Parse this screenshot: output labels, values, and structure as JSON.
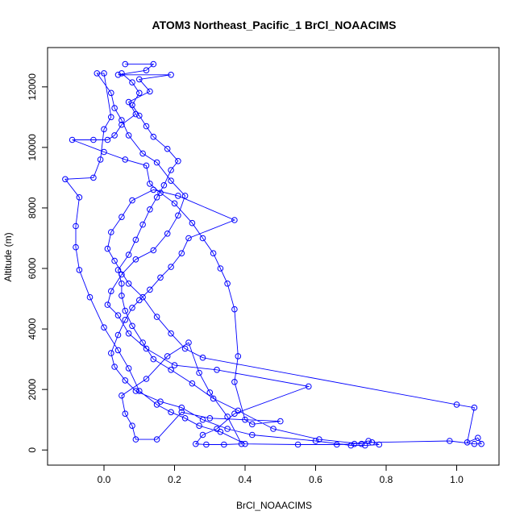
{
  "chart_data": {
    "type": "line",
    "title": "ATOM3 Northeast_Pacific_1 BrCl_NOAACIMS",
    "xlabel": "BrCl_NOAACIMS",
    "ylabel": "Altitude (m)",
    "xlim": [
      -0.16,
      1.12
    ],
    "ylim": [
      -500,
      13300
    ],
    "x_ticks": [
      0.0,
      0.2,
      0.4,
      0.6,
      0.8,
      1.0
    ],
    "x_tick_labels": [
      "0.0",
      "0.2",
      "0.4",
      "0.6",
      "0.8",
      "1.0"
    ],
    "y_ticks": [
      0,
      2000,
      4000,
      6000,
      8000,
      10000,
      12000
    ],
    "y_tick_labels": [
      "0",
      "2000",
      "4000",
      "6000",
      "8000",
      "10000",
      "12000"
    ],
    "grid": false,
    "series": [
      {
        "color": "#0000ff",
        "marker": "open-circle",
        "points": [
          [
            0.06,
            12750
          ],
          [
            0.14,
            12750
          ],
          [
            0.12,
            12550
          ],
          [
            0.04,
            12400
          ],
          [
            0.19,
            12400
          ],
          [
            0.1,
            12250
          ],
          [
            0.13,
            11850
          ],
          [
            0.07,
            11500
          ],
          [
            0.09,
            11100
          ],
          [
            0.05,
            10750
          ],
          [
            0.03,
            10400
          ],
          [
            0.01,
            10250
          ],
          [
            -0.03,
            10250
          ],
          [
            -0.09,
            10250
          ],
          [
            0.0,
            9850
          ],
          [
            0.06,
            9600
          ],
          [
            0.12,
            9400
          ],
          [
            0.13,
            8800
          ],
          [
            0.16,
            8500
          ],
          [
            0.2,
            8150
          ],
          [
            0.25,
            7500
          ],
          [
            0.28,
            7000
          ],
          [
            0.31,
            6500
          ],
          [
            0.33,
            6000
          ],
          [
            0.35,
            5500
          ],
          [
            0.37,
            4650
          ],
          [
            0.38,
            3100
          ],
          [
            0.37,
            2250
          ],
          [
            0.4,
            1000
          ],
          [
            0.42,
            850
          ],
          [
            0.5,
            950
          ],
          [
            0.3,
            1050
          ],
          [
            0.22,
            1250
          ],
          [
            0.15,
            350
          ],
          [
            0.09,
            350
          ],
          [
            0.08,
            800
          ],
          [
            0.06,
            1200
          ],
          [
            0.05,
            1800
          ],
          [
            0.12,
            2350
          ],
          [
            0.18,
            3100
          ],
          [
            0.24,
            3550
          ],
          [
            0.27,
            2550
          ],
          [
            0.3,
            1900
          ],
          [
            0.35,
            1100
          ],
          [
            0.39,
            200
          ],
          [
            0.34,
            180
          ],
          [
            0.29,
            180
          ],
          [
            0.26,
            200
          ],
          [
            0.28,
            500
          ],
          [
            0.32,
            700
          ],
          [
            0.37,
            1200
          ],
          [
            0.58,
            2100
          ],
          [
            0.32,
            2650
          ],
          [
            0.2,
            2800
          ],
          [
            0.12,
            3350
          ],
          [
            0.07,
            3850
          ],
          [
            0.04,
            4450
          ],
          [
            0.01,
            4800
          ],
          [
            0.02,
            5250
          ],
          [
            0.05,
            5800
          ],
          [
            0.09,
            6300
          ],
          [
            0.14,
            6600
          ],
          [
            0.18,
            7150
          ],
          [
            0.21,
            7750
          ],
          [
            0.23,
            8400
          ],
          [
            0.19,
            8900
          ],
          [
            0.15,
            9500
          ],
          [
            0.11,
            9800
          ],
          [
            0.07,
            10400
          ],
          [
            0.05,
            10900
          ],
          [
            0.03,
            11300
          ],
          [
            0.02,
            11800
          ],
          [
            -0.02,
            12450
          ],
          [
            0.0,
            12450
          ],
          [
            0.02,
            11000
          ],
          [
            0.0,
            10600
          ],
          [
            -0.01,
            9600
          ],
          [
            -0.03,
            9000
          ],
          [
            -0.11,
            8950
          ],
          [
            -0.07,
            8350
          ],
          [
            -0.08,
            7400
          ],
          [
            -0.08,
            6700
          ],
          [
            -0.07,
            5950
          ],
          [
            -0.04,
            5050
          ],
          [
            0.0,
            4050
          ],
          [
            0.04,
            3300
          ],
          [
            0.07,
            2700
          ],
          [
            0.1,
            1950
          ],
          [
            0.15,
            1500
          ],
          [
            0.19,
            1250
          ],
          [
            0.23,
            1050
          ],
          [
            0.27,
            800
          ],
          [
            0.33,
            600
          ],
          [
            0.4,
            200
          ],
          [
            0.55,
            180
          ],
          [
            0.66,
            180
          ],
          [
            0.71,
            200
          ],
          [
            0.75,
            300
          ],
          [
            0.78,
            180
          ],
          [
            0.74,
            150
          ],
          [
            0.7,
            150
          ],
          [
            0.6,
            300
          ],
          [
            0.42,
            500
          ],
          [
            0.35,
            700
          ],
          [
            0.28,
            1000
          ],
          [
            0.22,
            1400
          ],
          [
            0.16,
            1600
          ],
          [
            0.09,
            1950
          ],
          [
            0.06,
            2300
          ],
          [
            0.03,
            2750
          ],
          [
            0.02,
            3200
          ],
          [
            0.04,
            3800
          ],
          [
            0.06,
            4300
          ],
          [
            0.08,
            4700
          ],
          [
            0.1,
            4950
          ],
          [
            0.13,
            5300
          ],
          [
            0.16,
            5700
          ],
          [
            0.19,
            6050
          ],
          [
            0.22,
            6500
          ],
          [
            0.24,
            7000
          ],
          [
            0.37,
            7600
          ],
          [
            0.21,
            8400
          ],
          [
            0.14,
            8600
          ],
          [
            0.08,
            8250
          ],
          [
            0.05,
            7700
          ],
          [
            0.02,
            7200
          ],
          [
            0.01,
            6650
          ],
          [
            0.03,
            6250
          ],
          [
            0.07,
            5500
          ],
          [
            0.11,
            5050
          ],
          [
            0.15,
            4400
          ],
          [
            0.19,
            3850
          ],
          [
            0.23,
            3350
          ],
          [
            0.28,
            3050
          ],
          [
            1.0,
            1500
          ],
          [
            1.05,
            1400
          ],
          [
            1.03,
            250
          ],
          [
            1.06,
            400
          ],
          [
            1.07,
            200
          ],
          [
            1.05,
            200
          ],
          [
            0.98,
            300
          ],
          [
            0.76,
            250
          ],
          [
            0.73,
            200
          ],
          [
            0.61,
            350
          ],
          [
            0.48,
            700
          ],
          [
            0.38,
            1300
          ],
          [
            0.31,
            1700
          ],
          [
            0.25,
            2200
          ],
          [
            0.19,
            2650
          ],
          [
            0.14,
            3000
          ],
          [
            0.11,
            3550
          ],
          [
            0.08,
            4100
          ],
          [
            0.06,
            4600
          ],
          [
            0.05,
            5100
          ],
          [
            0.05,
            5500
          ],
          [
            0.04,
            5950
          ],
          [
            0.07,
            6450
          ],
          [
            0.09,
            6950
          ],
          [
            0.11,
            7450
          ],
          [
            0.13,
            7950
          ],
          [
            0.15,
            8350
          ],
          [
            0.17,
            8750
          ],
          [
            0.19,
            9250
          ],
          [
            0.21,
            9550
          ],
          [
            0.18,
            9950
          ],
          [
            0.14,
            10350
          ],
          [
            0.12,
            10700
          ],
          [
            0.1,
            11050
          ],
          [
            0.08,
            11400
          ],
          [
            0.1,
            11800
          ],
          [
            0.08,
            12150
          ],
          [
            0.05,
            12450
          ]
        ]
      }
    ]
  }
}
